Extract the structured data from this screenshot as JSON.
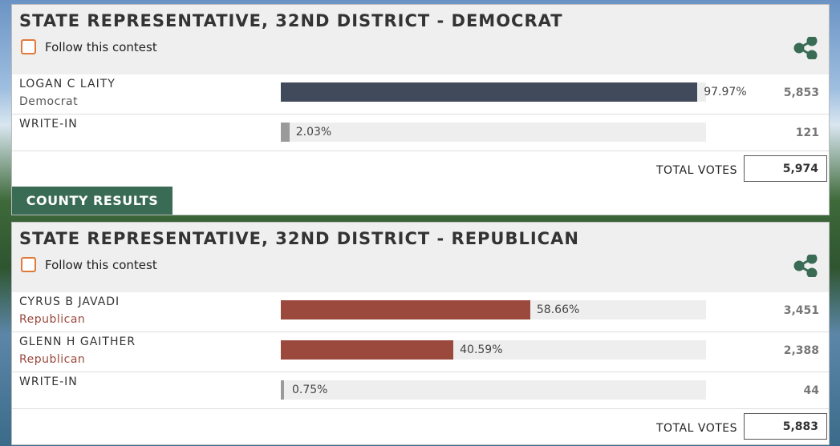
{
  "contests": [
    {
      "title": "STATE REPRESENTATIVE, 32ND DISTRICT - DEMOCRAT",
      "follow": "Follow this contest",
      "candidates": [
        {
          "name": "LOGAN C LAITY",
          "party": "Democrat",
          "percent": 97.97,
          "percent_label": "97.97%",
          "votes": "5,853",
          "color": "#414a5a"
        },
        {
          "name": "WRITE-IN",
          "percent": 2.03,
          "percent_label": "2.03%",
          "votes": "121",
          "color": "#9a9a9a"
        }
      ],
      "total_label": "TOTAL VOTES",
      "total": "5,974",
      "button": "COUNTY RESULTS"
    },
    {
      "title": "STATE REPRESENTATIVE, 32ND DISTRICT - REPUBLICAN",
      "follow": "Follow this contest",
      "candidates": [
        {
          "name": "CYRUS B JAVADI",
          "party": "Republican",
          "percent": 58.66,
          "percent_label": "58.66%",
          "votes": "3,451",
          "color": "#9b483d"
        },
        {
          "name": "GLENN H GAITHER",
          "party": "Republican",
          "percent": 40.59,
          "percent_label": "40.59%",
          "votes": "2,388",
          "color": "#9b483d"
        },
        {
          "name": "WRITE-IN",
          "percent": 0.75,
          "percent_label": "0.75%",
          "votes": "44",
          "color": "#9a9a9a"
        }
      ],
      "total_label": "TOTAL VOTES",
      "total": "5,883"
    }
  ]
}
